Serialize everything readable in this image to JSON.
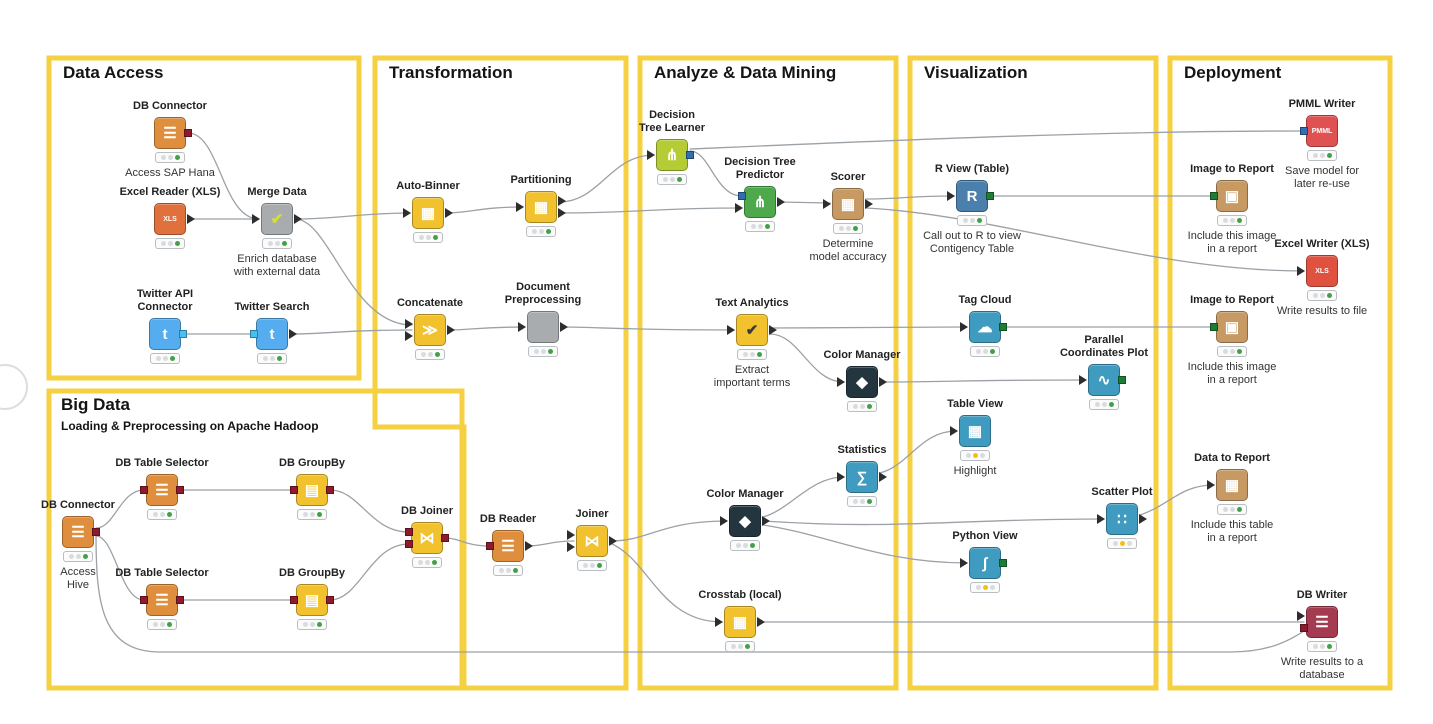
{
  "app": {
    "title": "KNIME Example Workflow"
  },
  "colors": {
    "annotation_border": "#F6D043",
    "wire": "#9BA1A6",
    "status_green": "#43A047",
    "status_yellow": "#F2C111",
    "status_off": "#D9DCDF",
    "port_db": "#8E1B2C",
    "port_model": "#2F6FB2",
    "port_image": "#1E7D35",
    "port_twitter": "#45C0F0"
  },
  "sections": {
    "data_access": {
      "title": "Data Access"
    },
    "transformation": {
      "title": "Transformation"
    },
    "analyze": {
      "title": "Analyze & Data Mining"
    },
    "visualization": {
      "title": "Visualization"
    },
    "deployment": {
      "title": "Deployment"
    },
    "big_data": {
      "title": "Big Data",
      "subtitle": "Loading & Preprocessing on Apache Hadoop"
    }
  },
  "nodes": {
    "db_connector_sap": {
      "label": "DB Connector",
      "glyph": "☰",
      "color": "#DE8E3D",
      "lights": "ooG",
      "comment": "Access SAP Hana"
    },
    "excel_reader": {
      "label": "Excel Reader (XLS)",
      "glyph": "XLS",
      "color": "#E0703C",
      "lights": "ooG",
      "comment": ""
    },
    "merge_data": {
      "label": "Merge Data",
      "glyph": "✔",
      "color": "#A8ACAE",
      "lights": "ooG",
      "comment": "Enrich database\nwith external data"
    },
    "twitter_api": {
      "label": "Twitter API\nConnector",
      "glyph": "t",
      "color": "#55ACEE",
      "lights": "ooG",
      "comment": ""
    },
    "twitter_search": {
      "label": "Twitter Search",
      "glyph": "t",
      "color": "#55ACEE",
      "lights": "ooG",
      "comment": ""
    },
    "auto_binner": {
      "label": "Auto-Binner",
      "glyph": "▦",
      "color": "#F2C12E",
      "lights": "ooG",
      "comment": ""
    },
    "partitioning": {
      "label": "Partitioning",
      "glyph": "▦",
      "color": "#F2C12E",
      "lights": "ooG",
      "comment": ""
    },
    "concatenate": {
      "label": "Concatenate",
      "glyph": "≫",
      "color": "#F2C12E",
      "lights": "ooG",
      "comment": ""
    },
    "doc_preprocessing": {
      "label": "Document\nPreprocessing",
      "glyph": "",
      "color": "#A8ACAE",
      "lights": "ooG",
      "comment": ""
    },
    "db_reader": {
      "label": "DB Reader",
      "glyph": "☰",
      "color": "#DE8E3D",
      "lights": "ooG",
      "comment": ""
    },
    "joiner": {
      "label": "Joiner",
      "glyph": "⋈",
      "color": "#F2C12E",
      "lights": "ooG",
      "comment": ""
    },
    "dt_learner": {
      "label": "Decision\nTree Learner",
      "glyph": "⋔",
      "color": "#B5CC34",
      "lights": "ooG",
      "comment": ""
    },
    "dt_predictor": {
      "label": "Decision Tree\nPredictor",
      "glyph": "⋔",
      "color": "#4DA94C",
      "lights": "ooG",
      "comment": ""
    },
    "scorer": {
      "label": "Scorer",
      "glyph": "▦",
      "color": "#C79A63",
      "lights": "ooG",
      "comment": "Determine\nmodel accuracy"
    },
    "text_analytics": {
      "label": "Text Analytics",
      "glyph": "✔",
      "color": "#F2C12E",
      "lights": "ooG",
      "comment": "Extract\nimportant terms"
    },
    "color_manager_1": {
      "label": "Color Manager",
      "glyph": "◆",
      "color": "#233640",
      "lights": "ooG",
      "comment": ""
    },
    "statistics": {
      "label": "Statistics",
      "glyph": "∑",
      "color": "#3F9BC0",
      "lights": "ooG",
      "comment": ""
    },
    "color_manager_2": {
      "label": "Color Manager",
      "glyph": "◆",
      "color": "#233640",
      "lights": "ooG",
      "comment": ""
    },
    "crosstab": {
      "label": "Crosstab (local)",
      "glyph": "▦",
      "color": "#F2C12E",
      "lights": "ooG",
      "comment": ""
    },
    "r_view": {
      "label": "R View (Table)",
      "glyph": "R",
      "color": "#4B80AC",
      "lights": "ooG",
      "comment": "Call out to R to view\nContigency Table"
    },
    "tag_cloud": {
      "label": "Tag Cloud",
      "glyph": "☁",
      "color": "#3F9BC0",
      "lights": "ooG",
      "comment": ""
    },
    "parallel_coords": {
      "label": "Parallel\nCoordinates Plot",
      "glyph": "∿",
      "color": "#3F9BC0",
      "lights": "ooG",
      "comment": ""
    },
    "table_view": {
      "label": "Table View",
      "glyph": "▦",
      "color": "#3F9BC0",
      "lights": "oYo",
      "comment": "Highlight"
    },
    "scatter_plot": {
      "label": "Scatter Plot",
      "glyph": "∷",
      "color": "#3F9BC0",
      "lights": "oYo",
      "comment": ""
    },
    "python_view": {
      "label": "Python View",
      "glyph": "∫",
      "color": "#3F9BC0",
      "lights": "oYo",
      "comment": ""
    },
    "pmml_writer": {
      "label": "PMML Writer",
      "glyph": "PMML",
      "color": "#E05151",
      "lights": "ooG",
      "comment": "Save model for\nlater re-use"
    },
    "image_to_report_1": {
      "label": "Image to Report",
      "glyph": "▣",
      "color": "#C79A63",
      "lights": "ooG",
      "comment": "Include this image\nin a report"
    },
    "excel_writer": {
      "label": "Excel Writer (XLS)",
      "glyph": "XLS",
      "color": "#E0523F",
      "lights": "ooG",
      "comment": "Write results to file"
    },
    "image_to_report_2": {
      "label": "Image to Report",
      "glyph": "▣",
      "color": "#C79A63",
      "lights": "ooG",
      "comment": "Include this image\nin a report"
    },
    "data_to_report": {
      "label": "Data to Report",
      "glyph": "▦",
      "color": "#C79A63",
      "lights": "ooG",
      "comment": "Include this table\nin a report"
    },
    "db_writer": {
      "label": "DB Writer",
      "glyph": "☰",
      "color": "#A43B50",
      "lights": "ooG",
      "comment": "Write results to a\ndatabase"
    },
    "db_connector_hive": {
      "label": "DB Connector",
      "glyph": "☰",
      "color": "#DE8E3D",
      "lights": "ooG",
      "comment": "Access\nHive"
    },
    "db_table_selector_1": {
      "label": "DB Table Selector",
      "glyph": "☰",
      "color": "#DE8E3D",
      "lights": "ooG",
      "comment": ""
    },
    "db_groupby_1": {
      "label": "DB GroupBy",
      "glyph": "▤",
      "color": "#F2C12E",
      "lights": "ooG",
      "comment": ""
    },
    "db_table_selector_2": {
      "label": "DB Table Selector",
      "glyph": "☰",
      "color": "#DE8E3D",
      "lights": "ooG",
      "comment": ""
    },
    "db_groupby_2": {
      "label": "DB GroupBy",
      "glyph": "▤",
      "color": "#F2C12E",
      "lights": "ooG",
      "comment": ""
    },
    "db_joiner": {
      "label": "DB Joiner",
      "glyph": "⋈",
      "color": "#F2C12E",
      "lights": "ooG",
      "comment": ""
    }
  }
}
